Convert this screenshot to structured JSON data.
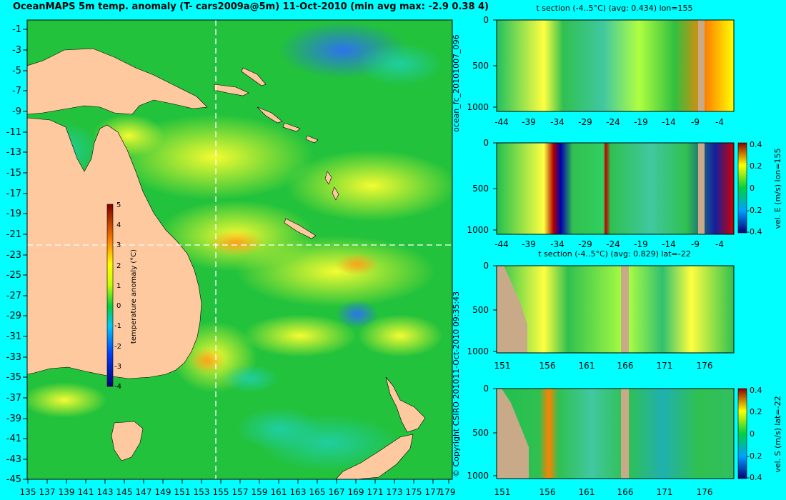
{
  "title": "OceanMAPS 5m temp. anomaly (T- cars2009a@5m) 11-Oct-2010 (min avg max: -2.9 0.38 4)",
  "map": {
    "lat_labels": [
      "-1",
      "-3",
      "-5",
      "-7",
      "-9",
      "-11",
      "-13",
      "-15",
      "-17",
      "-19",
      "-21",
      "-23",
      "-25",
      "-27",
      "-29",
      "-31",
      "-33",
      "-35",
      "-37",
      "-39",
      "-41",
      "-43",
      "-45"
    ],
    "lon_labels": [
      "135",
      "137",
      "139",
      "141",
      "143",
      "145",
      "147",
      "149",
      "151",
      "153",
      "155",
      "157",
      "159",
      "161",
      "163",
      "165",
      "167",
      "169",
      "171",
      "173",
      "175",
      "177",
      "179"
    ],
    "colorbar": {
      "label": "temperature anomaly (°C)",
      "ticks": [
        "5",
        "4",
        "3",
        "2",
        "1",
        "0",
        "-1",
        "-2",
        "-3",
        "-4"
      ]
    },
    "crosshair": {
      "lon": 155,
      "lat": -22
    }
  },
  "panels": {
    "p1": {
      "title": "t section (-4..5°C) (avg: 0.434) lon=155",
      "y_ticks": [
        "0",
        "500",
        "1000"
      ],
      "x_ticks": [
        "-44",
        "-39",
        "-34",
        "-29",
        "-24",
        "-19",
        "-14",
        "-9",
        "-4"
      ]
    },
    "p2": {
      "y_ticks": [
        "0",
        "500",
        "1000"
      ],
      "x_ticks": [
        "-44",
        "-39",
        "-34",
        "-29",
        "-24",
        "-19",
        "-14",
        "-9",
        "-4"
      ],
      "colorbar_ticks": [
        "0.4",
        "0.2",
        "0",
        "-0.2",
        "-0.4"
      ],
      "colorbar_label": "vel. E (m/s) lon=155"
    },
    "p3": {
      "title": "t section (-4..5°C) (avg: 0.829) lat=-22",
      "y_ticks": [
        "0",
        "500",
        "1000"
      ],
      "x_ticks": [
        "151",
        "156",
        "161",
        "166",
        "171",
        "176"
      ]
    },
    "p4": {
      "y_ticks": [
        "0",
        "500",
        "1000"
      ],
      "x_ticks": [
        "151",
        "156",
        "161",
        "166",
        "171",
        "176"
      ],
      "colorbar_ticks": [
        "0.4",
        "0.2",
        "0",
        "-0.2",
        "-0.4"
      ],
      "colorbar_label": "vel. S (m/s) lat=-22"
    }
  },
  "side_notes": {
    "run_id": "ocean_fc_20101007_096",
    "timestamp": "11-Oct-2010 09:35:43",
    "copyright": "© Copyright CSIRO 2010"
  },
  "colors": {
    "background": "#00ffff",
    "land": "#ffc9a0",
    "ocean_base": "#22c23c",
    "section_land": "#c9aa88"
  }
}
